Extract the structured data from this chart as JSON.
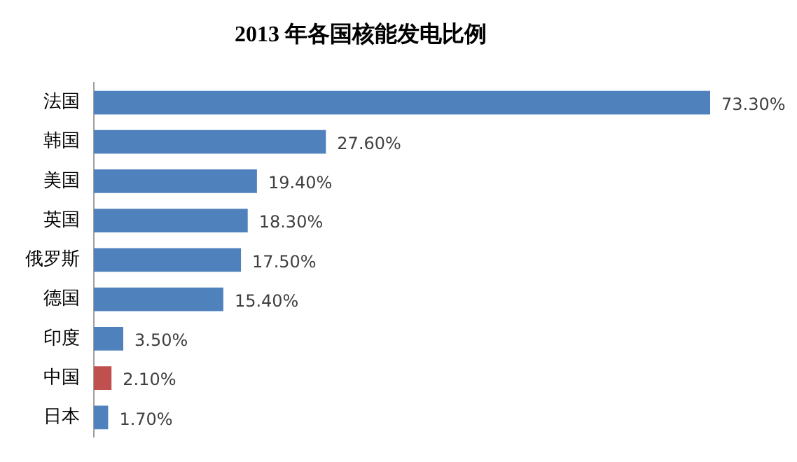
{
  "chart_data": {
    "type": "bar",
    "orientation": "horizontal",
    "title": "2013 年各国核能发电比例",
    "categories": [
      "法国",
      "韩国",
      "美国",
      "英国",
      "俄罗斯",
      "德国",
      "印度",
      "中国",
      "日本"
    ],
    "values": [
      73.3,
      27.6,
      19.4,
      18.3,
      17.5,
      15.4,
      3.5,
      2.1,
      1.7
    ],
    "colors": [
      "#4f81bd",
      "#4f81bd",
      "#4f81bd",
      "#4f81bd",
      "#4f81bd",
      "#4f81bd",
      "#4f81bd",
      "#c0504d",
      "#4f81bd"
    ],
    "value_labels": [
      "73.30%",
      "27.60%",
      "19.40%",
      "18.30%",
      "17.50%",
      "15.40%",
      "3.50%",
      "2.10%",
      "1.70%"
    ],
    "legend": false
  }
}
